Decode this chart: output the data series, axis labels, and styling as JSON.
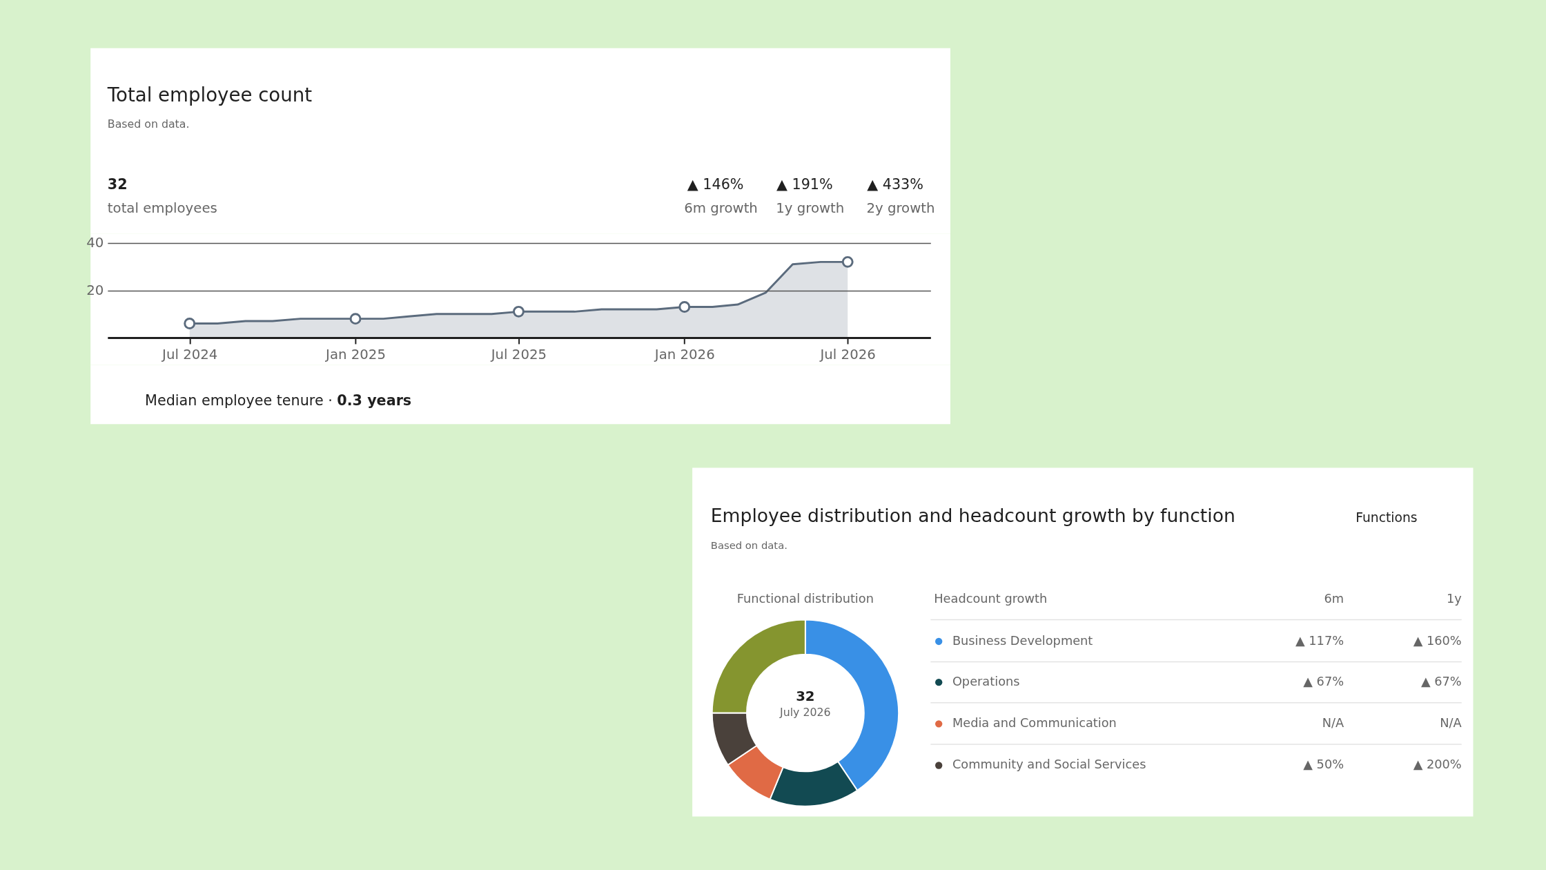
{
  "chart_data": [
    {
      "type": "area",
      "title": "Total employee count",
      "subtitle": "Based on data.",
      "x": [
        "2024-07",
        "2024-08",
        "2024-09",
        "2024-10",
        "2024-11",
        "2024-12",
        "2025-01",
        "2025-02",
        "2025-03",
        "2025-04",
        "2025-05",
        "2025-06",
        "2025-07",
        "2025-08",
        "2025-09",
        "2025-10",
        "2025-11",
        "2025-12",
        "2026-01",
        "2026-02",
        "2026-03",
        "2026-04",
        "2026-05",
        "2026-06",
        "2026-07"
      ],
      "series": [
        {
          "type": "area",
          "color": "#5b6b7d",
          "values": [
            6,
            6,
            7,
            7,
            8,
            8,
            8,
            8,
            9,
            10,
            10,
            10,
            11,
            11,
            11,
            12,
            12,
            12,
            13,
            13,
            14,
            19,
            31,
            32,
            32
          ]
        },
        {
          "type": "scatter",
          "color": "#5b6b7d",
          "marker": "circle",
          "x": [
            "2024-07",
            "2025-01",
            "2025-07",
            "2026-01",
            "2026-07"
          ],
          "values": [
            6,
            8,
            11,
            13,
            32
          ]
        }
      ],
      "xlim": [
        "2024-04",
        "2026-10"
      ],
      "xticks": [
        {
          "value": "2024-07",
          "label": "Jul 2024"
        },
        {
          "value": "2025-01",
          "label": "Jan 2025"
        },
        {
          "value": "2025-07",
          "label": "Jul 2025"
        },
        {
          "value": "2026-01",
          "label": "Jan 2026"
        },
        {
          "value": "2026-07",
          "label": "Jul 2026"
        }
      ],
      "ylim": [
        0,
        40
      ],
      "yticks": [
        20,
        40
      ],
      "grid": "y",
      "annotations": [
        "32",
        "total employees",
        "▲ 146%",
        "6m growth",
        "▲ 191%",
        "1y growth",
        "▲ 433%",
        "2y growth",
        "Median employee tenure ·",
        "0.3 years"
      ]
    },
    {
      "type": "donut",
      "title": "Employee distribution and headcount growth by function",
      "subtitle": "Based on data.",
      "categories": [
        "Business Development",
        "Operations",
        "Media and Communication",
        "Community and Social Services",
        null
      ],
      "values": [
        40.6,
        15.6,
        9.4,
        9.4,
        25
      ],
      "colors": [
        "#3990e6",
        "#124a52",
        "#e06a45",
        "#4a413b",
        "#85952f"
      ],
      "legend": "right",
      "legend_title": "Headcount growth",
      "annotations": [
        "Functional distribution",
        "6m",
        "1y",
        "▲ 117%",
        "▲ 160%",
        "▲ 67%",
        "▲ 67%",
        "N/A",
        "N/A",
        "▲ 50%",
        "▲ 200%",
        "Functions",
        "32",
        "July 2026"
      ]
    }
  ]
}
